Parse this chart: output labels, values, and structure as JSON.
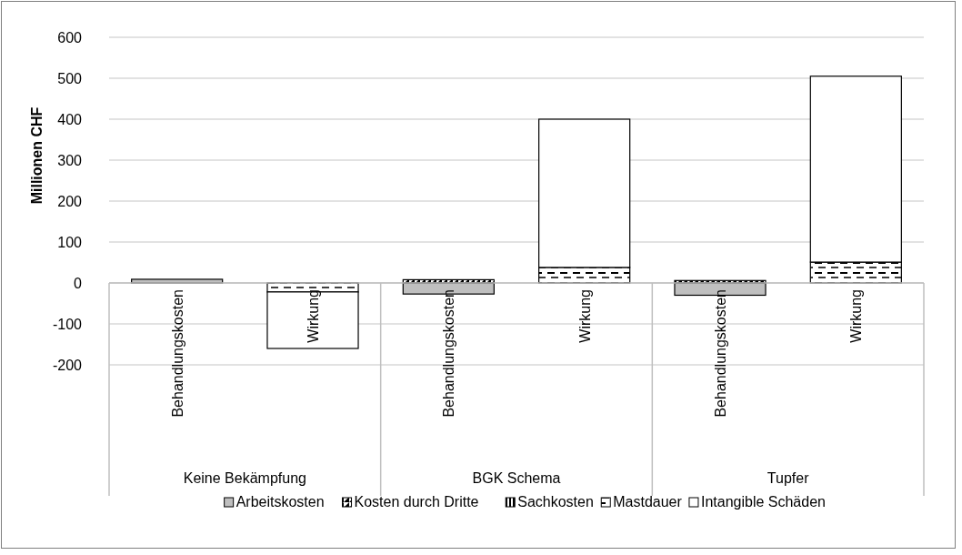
{
  "chart_data": {
    "type": "bar",
    "stacked": true,
    "ylabel": "Millionen CHF",
    "categories": [
      "Behandlungskosten",
      "Wirkung",
      "Behandlungskosten",
      "Wirkung",
      "Behandlungskosten",
      "Wirkung"
    ],
    "annotations": [
      "Keine Bekämpfung",
      "BGK Schema",
      "Tupfer"
    ],
    "series": [
      {
        "name": "Arbeitskosten",
        "color": "#bfbfbf",
        "values": [
          9,
          null,
          -27,
          null,
          -30,
          null
        ]
      },
      {
        "name": "Kosten durch Dritte",
        "color": "#000000",
        "values": [
          null,
          null,
          8,
          null,
          6,
          null
        ]
      },
      {
        "name": "Sachkosten",
        "color": "#000000",
        "values": [
          null,
          null,
          null,
          null,
          null,
          null
        ]
      },
      {
        "name": "Mastdauer",
        "color": "#000000",
        "values": [
          null,
          -22,
          null,
          38,
          null,
          51
        ]
      },
      {
        "name": "Intangible Schäden",
        "color": "#ffffff",
        "values": [
          null,
          -138,
          null,
          362,
          null,
          454
        ]
      }
    ],
    "ylim": [
      -200,
      600
    ],
    "yticks": [
      -200,
      -100,
      0,
      100,
      200,
      300,
      400,
      500,
      600
    ],
    "grid": "y",
    "legend": "bottom"
  }
}
